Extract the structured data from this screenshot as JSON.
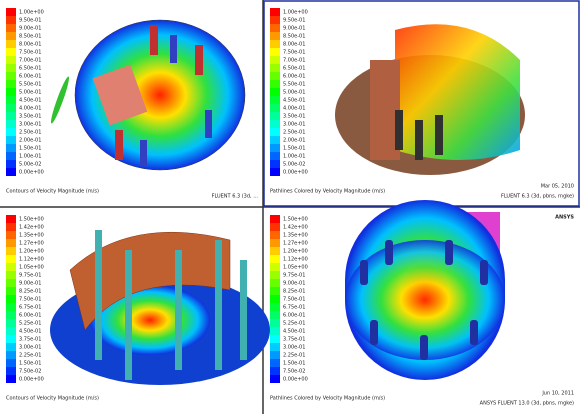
{
  "panels": [
    {
      "colorbar_labels": [
        "1.00e+00",
        "9.50e-01",
        "9.00e-01",
        "8.50e-01",
        "8.00e-01",
        "7.50e-01",
        "7.00e-01",
        "6.50e-01",
        "6.00e-01",
        "5.50e-01",
        "5.00e-01",
        "4.50e-01",
        "4.00e-01",
        "3.50e-01",
        "3.00e-01",
        "2.50e-01",
        "2.00e-01",
        "1.50e-01",
        "1.00e-01",
        "5.00e-02",
        "0.00e+00"
      ],
      "caption": "Contours of Velocity Magnitude (m/s)",
      "version": "FLUENT 6.3 (3d, ..."
    },
    {
      "colorbar_labels": [
        "1.00e+00",
        "9.50e-01",
        "9.00e-01",
        "8.50e-01",
        "8.00e-01",
        "7.50e-01",
        "7.00e-01",
        "6.50e-01",
        "6.00e-01",
        "5.50e-01",
        "5.00e-01",
        "4.50e-01",
        "4.00e-01",
        "3.50e-01",
        "3.00e-01",
        "2.50e-01",
        "2.00e-01",
        "1.50e-01",
        "1.00e-01",
        "5.00e-02",
        "0.00e+00"
      ],
      "caption": "Pathlines Colored by Velocity Magnitude (m/s)",
      "date": "Mar 05, 2010",
      "version": "FLUENT 6.3 (3d, pbns, rngke)"
    },
    {
      "colorbar_labels": [
        "1.50e+00",
        "1.42e+00",
        "1.35e+00",
        "1.27e+00",
        "1.20e+00",
        "1.12e+00",
        "1.05e+00",
        "9.75e-01",
        "9.00e-01",
        "8.25e-01",
        "7.50e-01",
        "6.75e-01",
        "6.00e-01",
        "5.25e-01",
        "4.50e-01",
        "3.75e-01",
        "3.00e-01",
        "2.25e-01",
        "1.50e-01",
        "7.50e-02",
        "0.00e+00"
      ],
      "caption": "Contours of Velocity Magnitude (m/s)"
    },
    {
      "colorbar_labels": [
        "1.50e+00",
        "1.42e+00",
        "1.35e+00",
        "1.27e+00",
        "1.20e+00",
        "1.12e+00",
        "1.05e+00",
        "9.75e-01",
        "9.00e-01",
        "8.25e-01",
        "7.50e-01",
        "6.75e-01",
        "6.00e-01",
        "5.25e-01",
        "4.50e-01",
        "3.75e-01",
        "3.00e-01",
        "2.25e-01",
        "1.50e-01",
        "7.50e-02",
        "0.00e+00"
      ],
      "caption": "Pathlines Colored by Velocity Magnitude (m/s)",
      "date": "Jun 10, 2011",
      "version": "ANSYS FLUENT 13.0 (3d, pbns, rngke)",
      "logo": "ANSYS"
    }
  ]
}
